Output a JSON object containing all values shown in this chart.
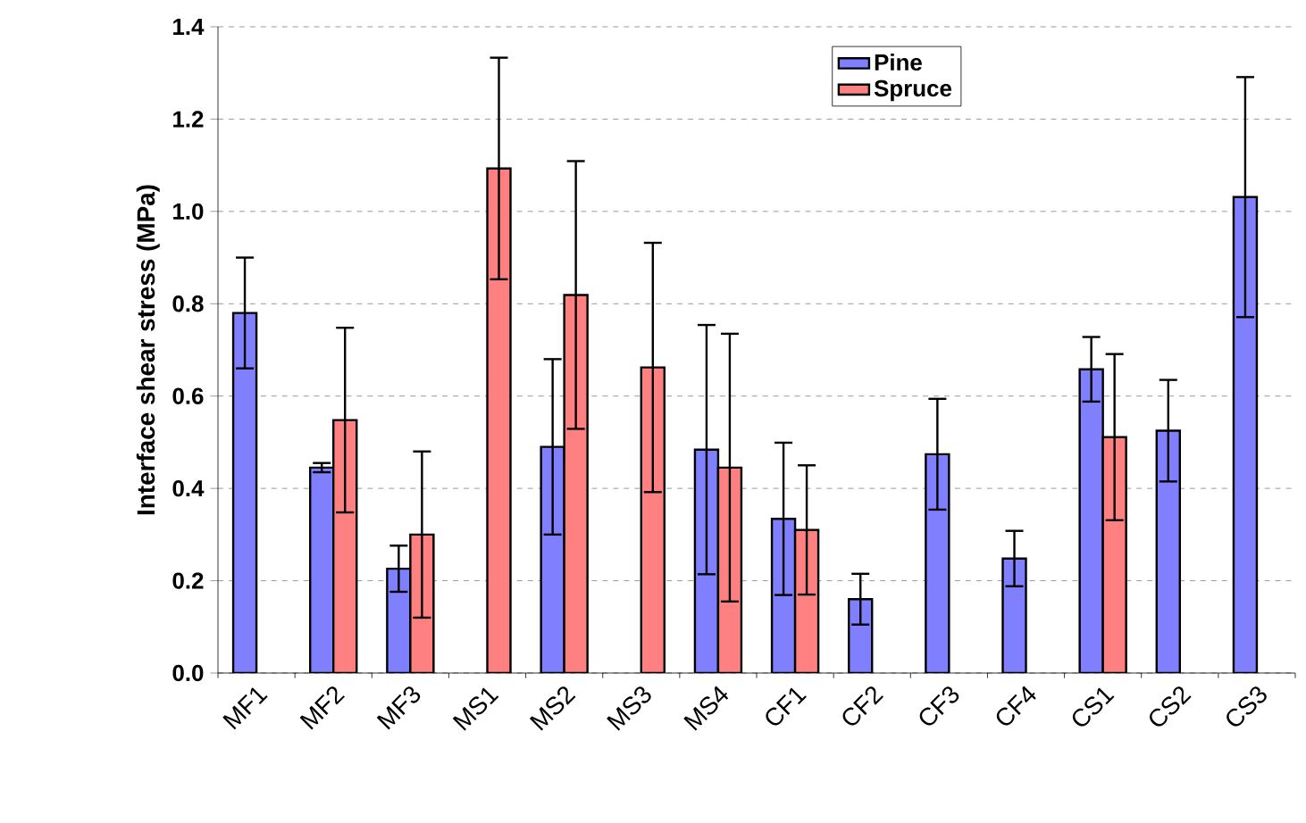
{
  "chart_data": {
    "type": "bar",
    "ylabel": "Interface shear stress (MPa)",
    "categories": [
      "MF1",
      "MF2",
      "MF3",
      "MS1",
      "MS2",
      "MS3",
      "MS4",
      "CF1",
      "CF2",
      "CF3",
      "CF4",
      "CS1",
      "CS2",
      "CS3"
    ],
    "series": [
      {
        "name": "Pine",
        "color": "#8080ff",
        "values": [
          0.78,
          0.445,
          0.226,
          null,
          0.49,
          null,
          0.484,
          0.334,
          0.16,
          0.474,
          0.248,
          0.658,
          0.525,
          1.031
        ],
        "errors": [
          0.12,
          0.01,
          0.05,
          null,
          0.19,
          null,
          0.27,
          0.165,
          0.055,
          0.12,
          0.06,
          0.07,
          0.11,
          0.26
        ]
      },
      {
        "name": "Spruce",
        "color": "#ff8080",
        "values": [
          null,
          0.548,
          0.3,
          1.093,
          0.819,
          0.662,
          0.445,
          0.31,
          null,
          null,
          null,
          0.511,
          null,
          null
        ],
        "errors": [
          null,
          0.2,
          0.18,
          0.24,
          0.29,
          0.27,
          0.29,
          0.14,
          null,
          null,
          null,
          0.18,
          null,
          null
        ]
      }
    ],
    "ylim": [
      0,
      1.4
    ],
    "yticks": [
      {
        "value": 0,
        "label": "0.0"
      },
      {
        "value": 0.2,
        "label": "0.2"
      },
      {
        "value": 0.4,
        "label": "0.4"
      },
      {
        "value": 0.6,
        "label": "0.6"
      },
      {
        "value": 0.8,
        "label": "0.8"
      },
      {
        "value": 1.0,
        "label": "1.0"
      },
      {
        "value": 1.2,
        "label": "1.2"
      },
      {
        "value": 1.4,
        "label": "1.4"
      }
    ],
    "grid": "y",
    "legend": "top right"
  }
}
